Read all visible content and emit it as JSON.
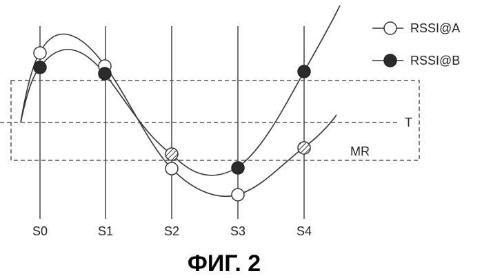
{
  "figure": {
    "caption": "ФИГ. 2",
    "columns": [
      "S0",
      "S1",
      "S2",
      "S3",
      "S4"
    ],
    "threshold_label": "T",
    "margin_label": "MR",
    "legend": [
      {
        "label": "RSSI@A",
        "marker": "open-circle"
      },
      {
        "label": "RSSI@B",
        "marker": "filled-circle"
      }
    ],
    "points": {
      "RSSI@A": [
        "open",
        "open",
        "open",
        "open",
        "hatched"
      ],
      "RSSI@B": [
        "filled",
        "filled",
        "hatched",
        "filled",
        "filled"
      ]
    },
    "colors": {
      "line": "#333333",
      "grid": "#444444",
      "filled_marker": "#2b2b2b",
      "open_marker": "#ffffff",
      "hatched_marker": "#ffffff"
    }
  }
}
